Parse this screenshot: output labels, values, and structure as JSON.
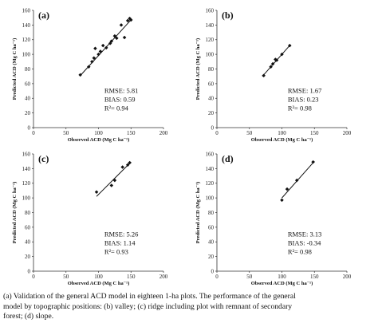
{
  "chart_data": [
    {
      "type": "scatter",
      "panel": "(a)",
      "xlabel": "Observed ACD (Mg C ha⁻¹)",
      "ylabel": "Predicted ACD (Mg C ha⁻¹)",
      "xlim": [
        0,
        200
      ],
      "ylim": [
        0,
        160
      ],
      "xticks": [
        0,
        50,
        100,
        150,
        200
      ],
      "yticks": [
        0,
        20,
        40,
        60,
        80,
        100,
        120,
        140,
        160
      ],
      "points": [
        [
          72,
          72
        ],
        [
          85,
          83
        ],
        [
          90,
          90
        ],
        [
          93,
          95
        ],
        [
          95,
          108
        ],
        [
          100,
          100
        ],
        [
          103,
          104
        ],
        [
          107,
          112
        ],
        [
          112,
          109
        ],
        [
          118,
          115
        ],
        [
          120,
          118
        ],
        [
          125,
          125
        ],
        [
          128,
          122
        ],
        [
          135,
          140
        ],
        [
          140,
          123
        ],
        [
          145,
          146
        ],
        [
          148,
          149
        ],
        [
          150,
          147
        ]
      ],
      "fit_line": [
        [
          72,
          71
        ],
        [
          150,
          147
        ]
      ],
      "stats": [
        "RMSE: 5.81",
        "BIAS: 0.59",
        "R²= 0.94"
      ]
    },
    {
      "type": "scatter",
      "panel": "(b)",
      "xlabel": "Observed ACD (Mg C ha⁻¹)",
      "ylabel": "Predicted ACD (Mg C ha⁻¹)",
      "xlim": [
        0,
        200
      ],
      "ylim": [
        0,
        160
      ],
      "xticks": [
        0,
        50,
        100,
        150,
        200
      ],
      "yticks": [
        0,
        20,
        40,
        60,
        80,
        100,
        120,
        140,
        160
      ],
      "points": [
        [
          72,
          71
        ],
        [
          83,
          83
        ],
        [
          86,
          87
        ],
        [
          90,
          93
        ],
        [
          92,
          92
        ],
        [
          100,
          100
        ],
        [
          112,
          112
        ]
      ],
      "fit_line": [
        [
          70,
          70
        ],
        [
          112,
          112
        ]
      ],
      "stats": [
        "RMSE: 1.67",
        "BIAS: 0.23",
        "R²= 0.98"
      ]
    },
    {
      "type": "scatter",
      "panel": "(c)",
      "xlabel": "Observed ACD (Mg C ha⁻¹)",
      "ylabel": "Predicted ACD (Mg C ha⁻¹)",
      "xlim": [
        0,
        200
      ],
      "ylim": [
        0,
        160
      ],
      "xticks": [
        0,
        50,
        100,
        150,
        200
      ],
      "yticks": [
        0,
        20,
        40,
        60,
        80,
        100,
        120,
        140,
        160
      ],
      "points": [
        [
          97,
          108
        ],
        [
          120,
          117
        ],
        [
          125,
          124
        ],
        [
          137,
          142
        ],
        [
          145,
          145
        ],
        [
          148,
          148
        ]
      ],
      "fit_line": [
        [
          97,
          102
        ],
        [
          150,
          149
        ]
      ],
      "stats": [
        "RMSE: 5.26",
        "BIAS: 1.14",
        "R²= 0.93"
      ]
    },
    {
      "type": "scatter",
      "panel": "(d)",
      "xlabel": "Observed ACD (Mg C ha⁻¹)",
      "ylabel": "Predicted ACD (Mg C ha⁻¹)",
      "xlim": [
        0,
        200
      ],
      "ylim": [
        0,
        160
      ],
      "xticks": [
        0,
        50,
        100,
        150,
        200
      ],
      "yticks": [
        0,
        20,
        40,
        60,
        80,
        100,
        120,
        140,
        160
      ],
      "points": [
        [
          100,
          97
        ],
        [
          108,
          112
        ],
        [
          123,
          124
        ],
        [
          148,
          149
        ]
      ],
      "fit_line": [
        [
          100,
          100
        ],
        [
          150,
          150
        ]
      ],
      "stats": [
        "RMSE: 3.13",
        "BIAS: -0.34",
        "R²= 0.98"
      ]
    }
  ],
  "caption": [
    "(a) Validation of the general ACD model in eighteen 1-ha plots. The performance of the general",
    "model by topographic positions: (b) valley; (c) ridge including plot with remnant of secondary",
    "forest; (d) slope."
  ]
}
